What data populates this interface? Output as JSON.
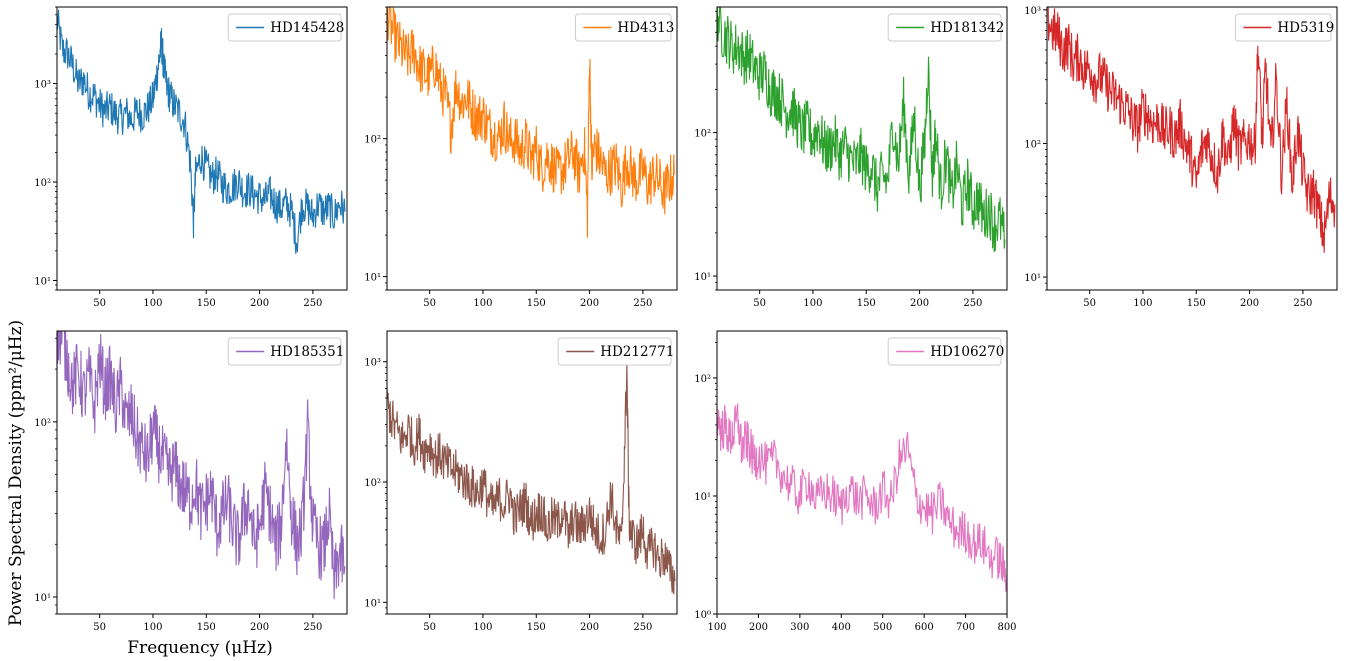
{
  "figure": {
    "ylabel": "Power Spectral Density (ppm²/μHz)",
    "xlabel": "Frequency (μHz)"
  },
  "chart_data": [
    {
      "type": "line",
      "series_name": "HD145428",
      "color": "#1f77b4",
      "yscale": "log",
      "xlim": [
        10,
        282
      ],
      "ylim": [
        8,
        6000
      ],
      "xticks": [
        50,
        100,
        150,
        200,
        250
      ],
      "yticks": [
        {
          "value": 10,
          "label": "10¹"
        },
        {
          "value": 100,
          "label": "10²"
        },
        {
          "value": 1000,
          "label": "10³"
        }
      ],
      "legend": "top-right",
      "x": [
        10,
        15,
        20,
        25,
        30,
        35,
        40,
        45,
        50,
        55,
        60,
        65,
        70,
        75,
        80,
        85,
        90,
        95,
        100,
        103,
        106,
        108,
        110,
        113,
        116,
        120,
        125,
        130,
        135,
        138,
        140,
        145,
        150,
        155,
        160,
        165,
        170,
        175,
        180,
        185,
        190,
        195,
        200,
        205,
        210,
        215,
        220,
        225,
        230,
        235,
        240,
        245,
        250,
        255,
        260,
        265,
        270,
        275,
        280
      ],
      "y": [
        4500,
        2200,
        2000,
        1500,
        1000,
        1100,
        800,
        750,
        600,
        520,
        580,
        480,
        450,
        500,
        430,
        520,
        480,
        550,
        700,
        1100,
        1800,
        2600,
        1500,
        900,
        750,
        600,
        500,
        400,
        160,
        40,
        120,
        180,
        140,
        110,
        120,
        95,
        85,
        90,
        105,
        80,
        85,
        75,
        70,
        65,
        75,
        60,
        55,
        60,
        50,
        25,
        60,
        55,
        45,
        60,
        50,
        55,
        45,
        60,
        50
      ]
    },
    {
      "type": "line",
      "series_name": "HD4313",
      "color": "#ff7f0e",
      "yscale": "log",
      "xlim": [
        10,
        282
      ],
      "ylim": [
        8,
        900
      ],
      "xticks": [
        50,
        100,
        150,
        200,
        250
      ],
      "yticks": [
        {
          "value": 10,
          "label": "10¹"
        },
        {
          "value": 100,
          "label": "10²"
        }
      ],
      "legend": "top-right",
      "x": [
        10,
        15,
        20,
        25,
        30,
        35,
        40,
        45,
        50,
        55,
        60,
        65,
        70,
        75,
        80,
        85,
        90,
        95,
        100,
        105,
        110,
        115,
        120,
        125,
        130,
        135,
        140,
        145,
        150,
        155,
        160,
        165,
        170,
        175,
        180,
        185,
        190,
        195,
        198,
        200,
        202,
        205,
        210,
        215,
        220,
        225,
        230,
        235,
        240,
        245,
        250,
        255,
        260,
        265,
        270,
        275,
        280
      ],
      "y": [
        850,
        600,
        500,
        420,
        380,
        450,
        330,
        300,
        280,
        350,
        240,
        200,
        120,
        250,
        180,
        200,
        160,
        140,
        150,
        120,
        110,
        100,
        130,
        95,
        100,
        80,
        95,
        70,
        85,
        60,
        75,
        65,
        55,
        60,
        70,
        80,
        55,
        90,
        28,
        420,
        60,
        90,
        70,
        55,
        60,
        65,
        45,
        70,
        55,
        50,
        60,
        45,
        55,
        50,
        40,
        50,
        55
      ]
    },
    {
      "type": "line",
      "series_name": "HD181342",
      "color": "#2ca02c",
      "yscale": "log",
      "xlim": [
        10,
        282
      ],
      "ylim": [
        8,
        750
      ],
      "xticks": [
        50,
        100,
        150,
        200,
        250
      ],
      "yticks": [
        {
          "value": 10,
          "label": "10¹"
        },
        {
          "value": 100,
          "label": "10²"
        }
      ],
      "legend": "top-right",
      "x": [
        10,
        15,
        20,
        25,
        30,
        35,
        40,
        45,
        50,
        55,
        60,
        65,
        70,
        75,
        80,
        85,
        90,
        95,
        100,
        105,
        110,
        115,
        120,
        125,
        130,
        135,
        140,
        145,
        150,
        155,
        160,
        165,
        170,
        175,
        180,
        185,
        190,
        195,
        200,
        205,
        208,
        212,
        215,
        220,
        225,
        230,
        235,
        240,
        245,
        250,
        255,
        260,
        265,
        270,
        275,
        280
      ],
      "y": [
        700,
        500,
        450,
        380,
        400,
        330,
        350,
        280,
        250,
        260,
        200,
        190,
        170,
        140,
        150,
        120,
        100,
        110,
        90,
        110,
        80,
        75,
        90,
        70,
        80,
        65,
        60,
        70,
        55,
        60,
        40,
        50,
        45,
        120,
        60,
        160,
        50,
        130,
        40,
        90,
        300,
        50,
        100,
        40,
        70,
        35,
        60,
        30,
        45,
        30,
        35,
        25,
        30,
        22,
        25,
        18
      ]
    },
    {
      "type": "line",
      "series_name": "HD5319",
      "color": "#d62728",
      "yscale": "log",
      "xlim": [
        10,
        282
      ],
      "ylim": [
        8,
        1050
      ],
      "xticks": [
        50,
        100,
        150,
        200,
        250
      ],
      "yticks": [
        {
          "value": 10,
          "label": "10¹"
        },
        {
          "value": 100,
          "label": "10²"
        },
        {
          "value": 1000,
          "label": "10³"
        }
      ],
      "legend": "top-right",
      "x": [
        10,
        15,
        20,
        25,
        30,
        35,
        40,
        45,
        50,
        55,
        60,
        65,
        70,
        75,
        80,
        85,
        90,
        95,
        100,
        105,
        110,
        115,
        120,
        125,
        130,
        135,
        140,
        145,
        150,
        155,
        160,
        165,
        170,
        175,
        180,
        185,
        190,
        195,
        200,
        205,
        208,
        212,
        215,
        220,
        225,
        230,
        235,
        240,
        245,
        250,
        255,
        260,
        265,
        270,
        275,
        280
      ],
      "y": [
        900,
        700,
        650,
        500,
        550,
        400,
        450,
        350,
        380,
        300,
        320,
        280,
        240,
        220,
        200,
        180,
        150,
        130,
        180,
        160,
        140,
        150,
        120,
        130,
        110,
        140,
        100,
        80,
        50,
        90,
        110,
        80,
        60,
        120,
        70,
        150,
        90,
        100,
        110,
        90,
        550,
        100,
        400,
        80,
        300,
        60,
        200,
        50,
        130,
        60,
        40,
        45,
        30,
        20,
        40,
        35
      ]
    },
    {
      "type": "line",
      "series_name": "HD185351",
      "color": "#9467bd",
      "yscale": "log",
      "xlim": [
        10,
        282
      ],
      "ylim": [
        8,
        330
      ],
      "xticks": [
        50,
        100,
        150,
        200,
        250
      ],
      "yticks": [
        {
          "value": 10,
          "label": "10¹"
        },
        {
          "value": 100,
          "label": "10²"
        }
      ],
      "legend": "top-right",
      "x": [
        10,
        15,
        20,
        25,
        30,
        35,
        40,
        45,
        50,
        55,
        60,
        65,
        70,
        75,
        80,
        85,
        90,
        95,
        100,
        105,
        110,
        115,
        120,
        125,
        130,
        135,
        140,
        145,
        150,
        155,
        160,
        165,
        170,
        175,
        180,
        185,
        190,
        195,
        200,
        205,
        210,
        215,
        220,
        225,
        230,
        235,
        240,
        245,
        250,
        255,
        260,
        265,
        270,
        275,
        280
      ],
      "y": [
        320,
        300,
        220,
        160,
        200,
        140,
        180,
        120,
        230,
        150,
        180,
        120,
        160,
        100,
        110,
        80,
        70,
        60,
        90,
        70,
        60,
        50,
        55,
        45,
        40,
        35,
        45,
        30,
        35,
        40,
        25,
        30,
        35,
        25,
        20,
        30,
        35,
        20,
        25,
        40,
        30,
        20,
        25,
        80,
        30,
        20,
        25,
        90,
        25,
        20,
        18,
        30,
        12,
        18,
        15
      ]
    },
    {
      "type": "line",
      "series_name": "HD212771",
      "color": "#8c564b",
      "yscale": "log",
      "xlim": [
        10,
        282
      ],
      "ylim": [
        8,
        1800
      ],
      "xticks": [
        50,
        100,
        150,
        200,
        250
      ],
      "yticks": [
        {
          "value": 10,
          "label": "10¹"
        },
        {
          "value": 100,
          "label": "10²"
        },
        {
          "value": 1000,
          "label": "10³"
        }
      ],
      "legend": "top-right",
      "x": [
        10,
        15,
        20,
        25,
        30,
        35,
        40,
        45,
        50,
        55,
        60,
        65,
        70,
        75,
        80,
        85,
        90,
        95,
        100,
        105,
        110,
        115,
        120,
        125,
        130,
        135,
        140,
        145,
        150,
        155,
        160,
        165,
        170,
        175,
        180,
        185,
        190,
        195,
        200,
        205,
        210,
        215,
        220,
        225,
        230,
        233,
        235,
        237,
        240,
        245,
        250,
        255,
        260,
        265,
        270,
        275,
        280
      ],
      "y": [
        450,
        320,
        260,
        220,
        280,
        200,
        250,
        180,
        210,
        160,
        170,
        140,
        130,
        120,
        110,
        100,
        90,
        80,
        100,
        70,
        60,
        75,
        65,
        80,
        50,
        60,
        70,
        45,
        55,
        60,
        40,
        50,
        45,
        60,
        35,
        50,
        40,
        45,
        55,
        40,
        35,
        40,
        80,
        40,
        30,
        220,
        880,
        50,
        35,
        30,
        40,
        25,
        30,
        22,
        25,
        18,
        15
      ]
    },
    {
      "type": "line",
      "series_name": "HD106270",
      "color": "#e377c2",
      "yscale": "log",
      "xlim": [
        100,
        800
      ],
      "ylim": [
        1,
        250
      ],
      "xticks": [
        100,
        200,
        300,
        400,
        500,
        600,
        700,
        800
      ],
      "yticks": [
        {
          "value": 1,
          "label": "10⁰"
        },
        {
          "value": 10,
          "label": "10¹"
        },
        {
          "value": 100,
          "label": "10²"
        }
      ],
      "legend": "top-right",
      "x": [
        100,
        110,
        120,
        130,
        140,
        150,
        160,
        170,
        180,
        190,
        200,
        220,
        240,
        260,
        280,
        300,
        320,
        340,
        360,
        380,
        400,
        420,
        440,
        460,
        480,
        500,
        520,
        540,
        560,
        580,
        600,
        620,
        640,
        660,
        680,
        700,
        720,
        740,
        760,
        780,
        790,
        800
      ],
      "y": [
        50,
        35,
        40,
        30,
        35,
        45,
        25,
        30,
        25,
        20,
        22,
        18,
        20,
        15,
        12,
        10,
        14,
        9,
        11,
        10,
        8,
        12,
        9,
        10,
        8,
        11,
        9,
        20,
        25,
        10,
        8,
        7,
        9,
        6,
        5,
        5,
        4,
        4,
        3,
        3,
        2.5,
        2.2
      ]
    }
  ]
}
